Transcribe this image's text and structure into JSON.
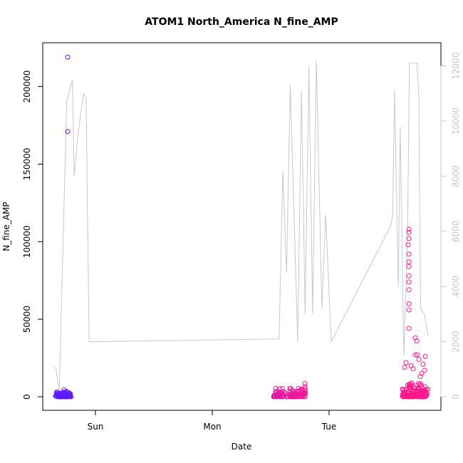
{
  "chart_data": {
    "type": "scatter",
    "title": "ATOM1 North_America N_fine_AMP",
    "xlabel": "Date",
    "ylabel": "N_fine_AMP",
    "x_ticks": [
      "Sun",
      "Mon",
      "Tue"
    ],
    "y_ticks": [
      "0",
      "50000",
      "100000",
      "150000",
      "200000"
    ],
    "y2_ticks": [
      "0",
      "2000",
      "4000",
      "6000",
      "8000",
      "10000",
      "12000"
    ],
    "y_range": [
      0,
      220000
    ],
    "y2_range": [
      0,
      12500
    ],
    "colors": {
      "axis": "#000000",
      "secondary_axis": "#c8c8c8",
      "line": "#c8c8c8",
      "points_start": "#5a1cff",
      "points_end": "#ff1a8c"
    },
    "secondary_line": {
      "values": [
        [
          0.0,
          1100
        ],
        [
          0.01,
          250
        ],
        [
          0.03,
          10700
        ],
        [
          0.045,
          11500
        ],
        [
          0.05,
          8000
        ],
        [
          0.06,
          9500
        ],
        [
          0.075,
          11000
        ],
        [
          0.082,
          10800
        ],
        [
          0.09,
          2000
        ],
        [
          0.12,
          2000
        ],
        [
          0.6,
          2100
        ],
        [
          0.61,
          8200
        ],
        [
          0.62,
          4500
        ],
        [
          0.63,
          11300
        ],
        [
          0.65,
          2000
        ],
        [
          0.66,
          11100
        ],
        [
          0.67,
          3000
        ],
        [
          0.68,
          12000
        ],
        [
          0.69,
          3000
        ],
        [
          0.7,
          12200
        ],
        [
          0.715,
          3200
        ],
        [
          0.725,
          6600
        ],
        [
          0.74,
          2000
        ],
        [
          0.9,
          6200
        ],
        [
          0.905,
          6600
        ],
        [
          0.91,
          11100
        ],
        [
          0.92,
          4000
        ],
        [
          0.925,
          9800
        ],
        [
          0.935,
          1500
        ],
        [
          0.945,
          6000
        ],
        [
          0.95,
          12100
        ],
        [
          0.97,
          12100
        ],
        [
          0.975,
          11000
        ],
        [
          0.98,
          3200
        ],
        [
          0.99,
          3000
        ],
        [
          1.0,
          2200
        ]
      ]
    }
  }
}
